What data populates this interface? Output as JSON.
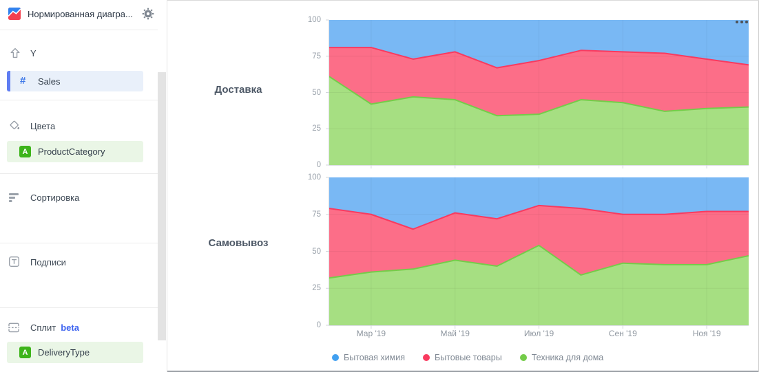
{
  "sidebar": {
    "header": {
      "viz_icon": "area-chart-icon",
      "title": "Нормированная диагра...",
      "settings_icon": "gear-icon"
    },
    "sections": [
      {
        "label": "Y",
        "icon": "arrow-up-icon",
        "fields": [
          {
            "label": "Sales",
            "type_glyph": "#",
            "kind": "measure"
          }
        ]
      },
      {
        "label": "Цвета",
        "icon": "paint-bucket-icon",
        "fields": [
          {
            "label": "ProductCategory",
            "type_glyph": "A",
            "kind": "dimension"
          }
        ]
      },
      {
        "label": "Сортировка",
        "icon": "sort-bars-icon",
        "fields": []
      },
      {
        "label": "Подписи",
        "icon": "text-label-icon",
        "fields": []
      },
      {
        "label": "Сплит",
        "badge": "beta",
        "icon": "split-rows-icon",
        "fields": [
          {
            "label": "DeliveryType",
            "type_glyph": "A",
            "kind": "dimension"
          }
        ]
      }
    ]
  },
  "main": {
    "more_menu_icon": "ellipsis-icon"
  },
  "chart_data": [
    {
      "type": "area",
      "stacking": "percent",
      "row_label": "Доставка",
      "n_points": 11,
      "x_tick_labels": [
        "Мар '19",
        "Май '19",
        "Июл '19",
        "Сен '19",
        "Ноя '19"
      ],
      "x_tick_indices": [
        1,
        3,
        5,
        7,
        9
      ],
      "y_ticks": [
        0,
        25,
        50,
        75,
        100
      ],
      "ylim": [
        0,
        100
      ],
      "grid": true,
      "series": [
        {
          "name": "Бытовая химия",
          "fill": "#79b8f4",
          "edge": "#41a0f0",
          "values": [
            19,
            19,
            27,
            22,
            33,
            28,
            21,
            22,
            23,
            27,
            31
          ]
        },
        {
          "name": "Бытовые товары",
          "fill": "#fc6e88",
          "edge": "#f93a5f",
          "values": [
            20,
            39,
            26,
            33,
            33,
            37,
            34,
            35,
            40,
            34,
            29
          ]
        },
        {
          "name": "Техника для дома",
          "fill": "#a6df82",
          "edge": "#74cc49",
          "values": [
            61,
            42,
            47,
            45,
            34,
            35,
            45,
            43,
            37,
            39,
            40
          ]
        }
      ]
    },
    {
      "type": "area",
      "stacking": "percent",
      "row_label": "Самовывоз",
      "n_points": 11,
      "x_tick_labels": [
        "Мар '19",
        "Май '19",
        "Июл '19",
        "Сен '19",
        "Ноя '19"
      ],
      "x_tick_indices": [
        1,
        3,
        5,
        7,
        9
      ],
      "y_ticks": [
        0,
        25,
        50,
        75,
        100
      ],
      "ylim": [
        0,
        100
      ],
      "grid": true,
      "series": [
        {
          "name": "Бытовая химия",
          "fill": "#79b8f4",
          "edge": "#41a0f0",
          "values": [
            21,
            25,
            35,
            24,
            28,
            19,
            21,
            25,
            25,
            23,
            23
          ]
        },
        {
          "name": "Бытовые товары",
          "fill": "#fc6e88",
          "edge": "#f93a5f",
          "values": [
            47,
            39,
            27,
            32,
            32,
            27,
            45,
            33,
            34,
            36,
            30
          ]
        },
        {
          "name": "Техника для дома",
          "fill": "#a6df82",
          "edge": "#74cc49",
          "values": [
            32,
            36,
            38,
            44,
            40,
            54,
            34,
            42,
            41,
            41,
            47
          ]
        }
      ]
    }
  ]
}
